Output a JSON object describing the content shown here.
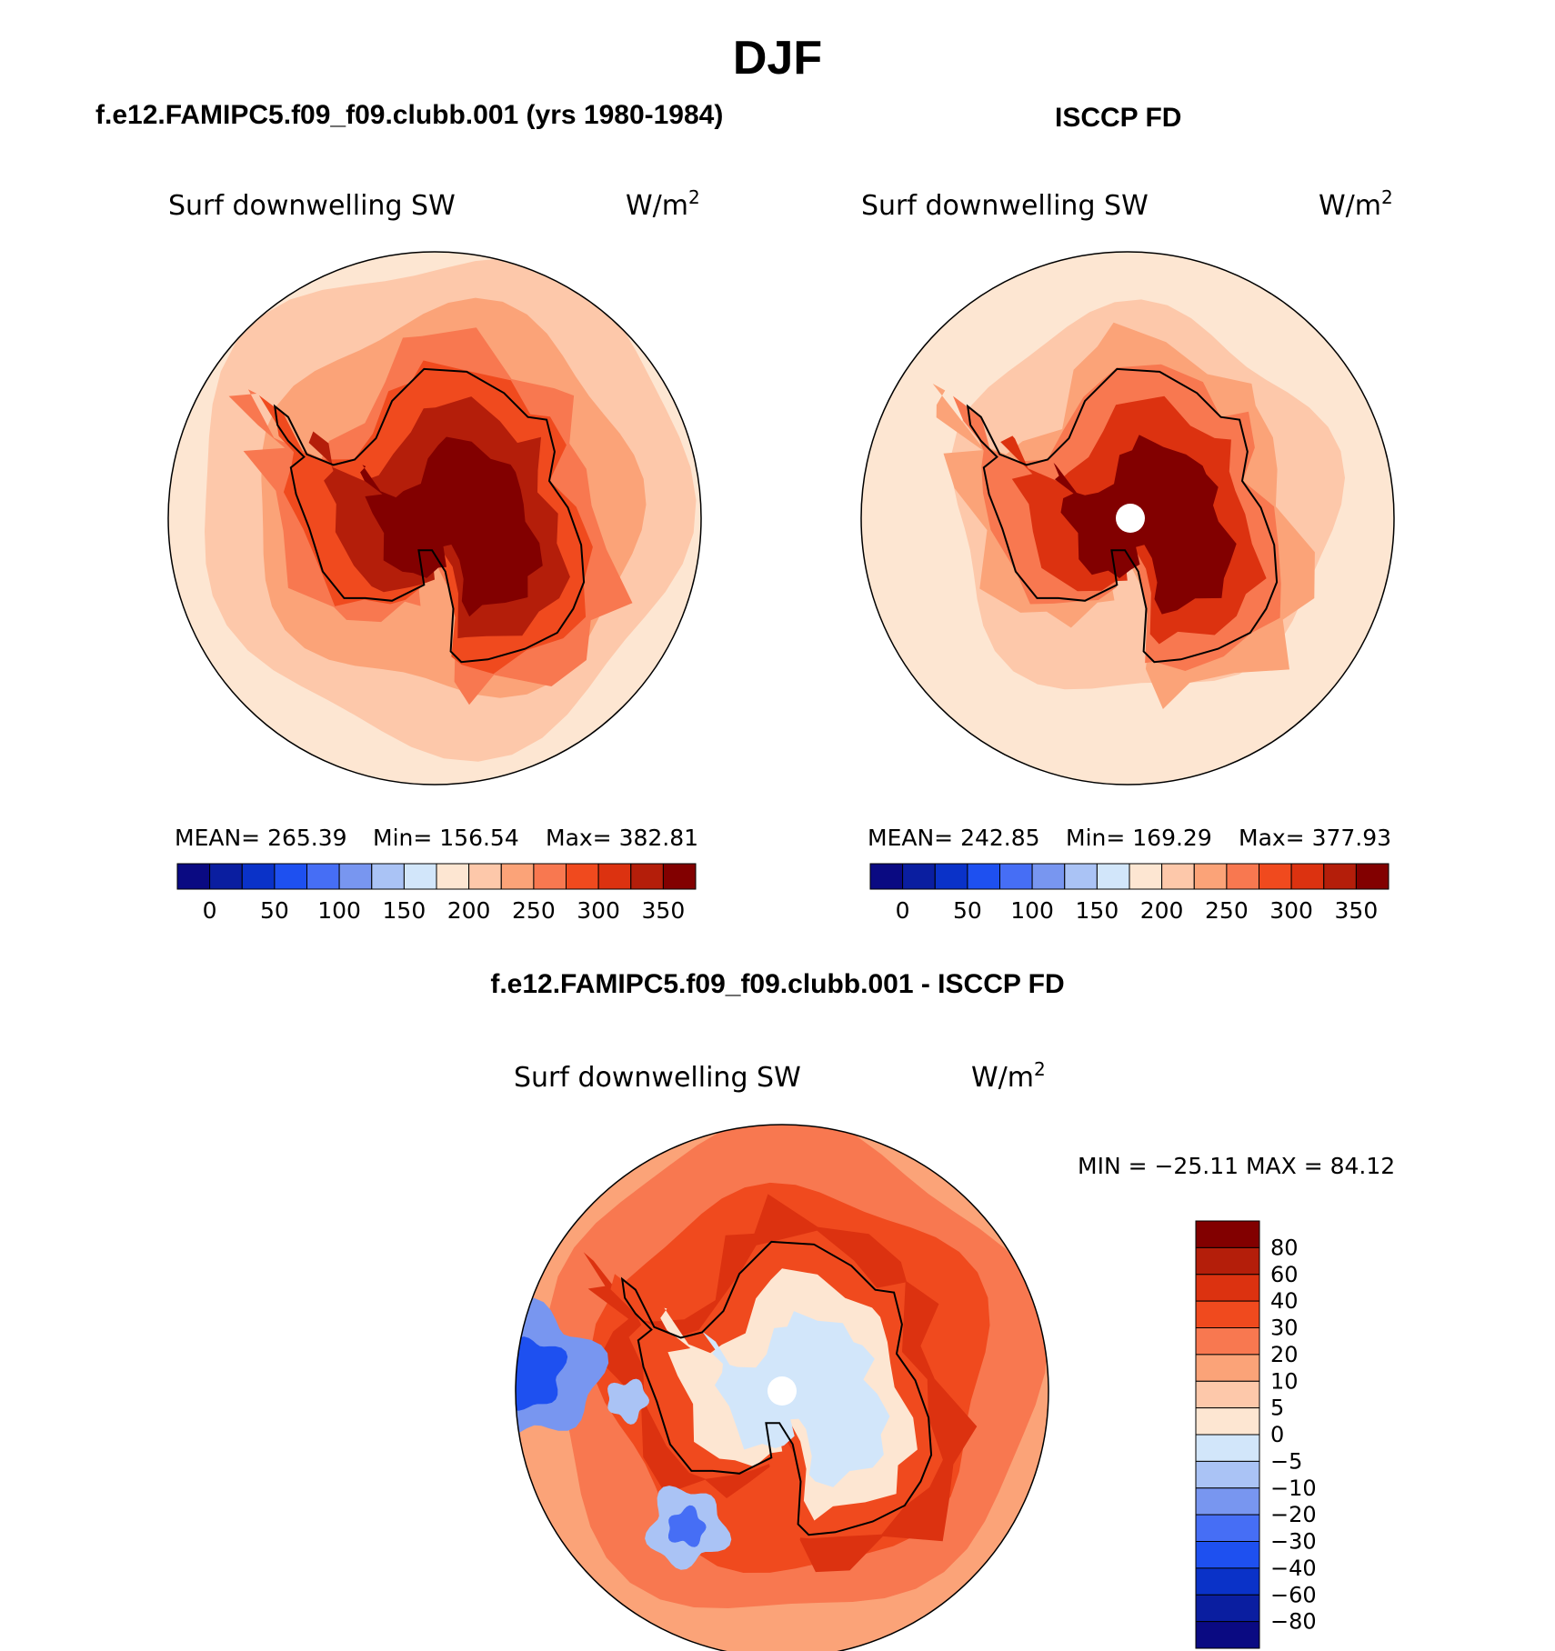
{
  "page": {
    "season": "DJF",
    "panel_titles": {
      "model": "f.e12.FAMIPC5.f09_f09.clubb.001 (yrs 1980-1984)",
      "obs": "ISCCP FD",
      "diff": "f.e12.FAMIPC5.f09_f09.clubb.001 - ISCCP FD"
    }
  },
  "chart_data": [
    {
      "type": "heatmap",
      "projection": "south-polar-stereographic",
      "title": "Surf downwelling SW",
      "units_base": "W/m",
      "units_exp": "2",
      "stats": {
        "mean_label": "MEAN=",
        "mean": "265.39",
        "min_label": "Min=",
        "min": "156.54",
        "max_label": "Max=",
        "max": "382.81"
      },
      "colorbar": {
        "orientation": "horizontal",
        "colors": [
          "#0a0a82",
          "#0a1ea0",
          "#0a32c8",
          "#1e50f0",
          "#466ef5",
          "#7896f0",
          "#aac3f5",
          "#d2e6fa",
          "#fde6d2",
          "#fdc8aa",
          "#fba378",
          "#f87850",
          "#f04a1e",
          "#dc3210",
          "#b41e0a",
          "#820000"
        ],
        "tick_labels": [
          "0",
          "50",
          "100",
          "150",
          "200",
          "250",
          "300",
          "350"
        ]
      },
      "field_levels": {
        "open_ocean": 8,
        "mid_ocean": 9,
        "outer_ring": 10,
        "coastal": 11,
        "shelf": 12,
        "interior": 14,
        "plateau": 15
      }
    },
    {
      "type": "heatmap",
      "projection": "south-polar-stereographic",
      "title": "Surf downwelling SW",
      "units_base": "W/m",
      "units_exp": "2",
      "stats": {
        "mean_label": "MEAN=",
        "mean": "242.85",
        "min_label": "Min=",
        "min": "169.29",
        "max_label": "Max=",
        "max": "377.93"
      },
      "colorbar": {
        "orientation": "horizontal",
        "colors": [
          "#0a0a82",
          "#0a1ea0",
          "#0a32c8",
          "#1e50f0",
          "#466ef5",
          "#7896f0",
          "#aac3f5",
          "#d2e6fa",
          "#fde6d2",
          "#fdc8aa",
          "#fba378",
          "#f87850",
          "#f04a1e",
          "#dc3210",
          "#b41e0a",
          "#820000"
        ],
        "tick_labels": [
          "0",
          "50",
          "100",
          "150",
          "200",
          "250",
          "300",
          "350"
        ]
      },
      "field_levels": {
        "open_ocean": 8,
        "mid_ocean": 8,
        "outer_ring": 9,
        "coastal": 10,
        "shelf": 11,
        "interior": 13,
        "plateau": 15
      }
    },
    {
      "type": "heatmap",
      "projection": "south-polar-stereographic",
      "title": "Surf downwelling SW",
      "units_base": "W/m",
      "units_exp": "2",
      "stats": {
        "text": "MIN = −25.11 MAX =  84.12",
        "min": "−25.11",
        "max": "84.12"
      },
      "colorbar": {
        "orientation": "vertical",
        "colors_top_to_bottom": [
          "#820000",
          "#b41e0a",
          "#dc3210",
          "#f04a1e",
          "#f87850",
          "#fba378",
          "#fdc8aa",
          "#fde6d2",
          "#d2e6fa",
          "#aac3f5",
          "#7896f0",
          "#466ef5",
          "#1e50f0",
          "#0a32c8",
          "#0a1ea0",
          "#0a0a82"
        ],
        "tick_labels": [
          "80",
          "60",
          "40",
          "30",
          "20",
          "10",
          "5",
          "0",
          "−5",
          "−10",
          "−20",
          "−30",
          "−40",
          "−60",
          "−80"
        ]
      },
      "field_levels": {
        "open_ocean": 10,
        "mid_ocean": 11,
        "outer_ring": 12,
        "coastal": 13,
        "shelf": 12,
        "interior": 8,
        "plateau": 7
      }
    }
  ]
}
